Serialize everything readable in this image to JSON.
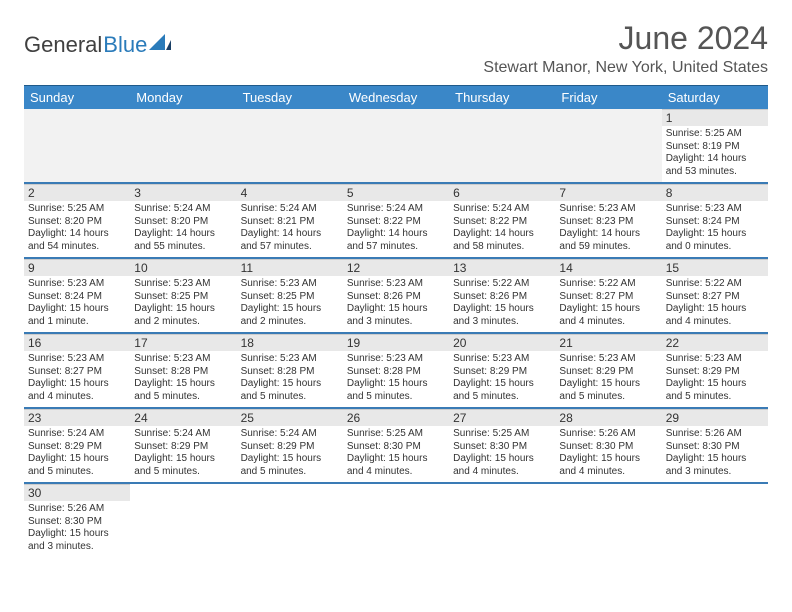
{
  "logo": {
    "text1": "General",
    "text2": "Blue"
  },
  "title": "June 2024",
  "location": "Stewart Manor, New York, United States",
  "header_bg": "#3a87c8",
  "row_divider": "#3a7bb5",
  "daynum_bg": "#e8e8e8",
  "weekdays": [
    "Sunday",
    "Monday",
    "Tuesday",
    "Wednesday",
    "Thursday",
    "Friday",
    "Saturday"
  ],
  "weeks": [
    [
      null,
      null,
      null,
      null,
      null,
      null,
      {
        "d": "1",
        "sr": "Sunrise: 5:25 AM",
        "ss": "Sunset: 8:19 PM",
        "dl": "Daylight: 14 hours and 53 minutes."
      }
    ],
    [
      {
        "d": "2",
        "sr": "Sunrise: 5:25 AM",
        "ss": "Sunset: 8:20 PM",
        "dl": "Daylight: 14 hours and 54 minutes."
      },
      {
        "d": "3",
        "sr": "Sunrise: 5:24 AM",
        "ss": "Sunset: 8:20 PM",
        "dl": "Daylight: 14 hours and 55 minutes."
      },
      {
        "d": "4",
        "sr": "Sunrise: 5:24 AM",
        "ss": "Sunset: 8:21 PM",
        "dl": "Daylight: 14 hours and 57 minutes."
      },
      {
        "d": "5",
        "sr": "Sunrise: 5:24 AM",
        "ss": "Sunset: 8:22 PM",
        "dl": "Daylight: 14 hours and 57 minutes."
      },
      {
        "d": "6",
        "sr": "Sunrise: 5:24 AM",
        "ss": "Sunset: 8:22 PM",
        "dl": "Daylight: 14 hours and 58 minutes."
      },
      {
        "d": "7",
        "sr": "Sunrise: 5:23 AM",
        "ss": "Sunset: 8:23 PM",
        "dl": "Daylight: 14 hours and 59 minutes."
      },
      {
        "d": "8",
        "sr": "Sunrise: 5:23 AM",
        "ss": "Sunset: 8:24 PM",
        "dl": "Daylight: 15 hours and 0 minutes."
      }
    ],
    [
      {
        "d": "9",
        "sr": "Sunrise: 5:23 AM",
        "ss": "Sunset: 8:24 PM",
        "dl": "Daylight: 15 hours and 1 minute."
      },
      {
        "d": "10",
        "sr": "Sunrise: 5:23 AM",
        "ss": "Sunset: 8:25 PM",
        "dl": "Daylight: 15 hours and 2 minutes."
      },
      {
        "d": "11",
        "sr": "Sunrise: 5:23 AM",
        "ss": "Sunset: 8:25 PM",
        "dl": "Daylight: 15 hours and 2 minutes."
      },
      {
        "d": "12",
        "sr": "Sunrise: 5:23 AM",
        "ss": "Sunset: 8:26 PM",
        "dl": "Daylight: 15 hours and 3 minutes."
      },
      {
        "d": "13",
        "sr": "Sunrise: 5:22 AM",
        "ss": "Sunset: 8:26 PM",
        "dl": "Daylight: 15 hours and 3 minutes."
      },
      {
        "d": "14",
        "sr": "Sunrise: 5:22 AM",
        "ss": "Sunset: 8:27 PM",
        "dl": "Daylight: 15 hours and 4 minutes."
      },
      {
        "d": "15",
        "sr": "Sunrise: 5:22 AM",
        "ss": "Sunset: 8:27 PM",
        "dl": "Daylight: 15 hours and 4 minutes."
      }
    ],
    [
      {
        "d": "16",
        "sr": "Sunrise: 5:23 AM",
        "ss": "Sunset: 8:27 PM",
        "dl": "Daylight: 15 hours and 4 minutes."
      },
      {
        "d": "17",
        "sr": "Sunrise: 5:23 AM",
        "ss": "Sunset: 8:28 PM",
        "dl": "Daylight: 15 hours and 5 minutes."
      },
      {
        "d": "18",
        "sr": "Sunrise: 5:23 AM",
        "ss": "Sunset: 8:28 PM",
        "dl": "Daylight: 15 hours and 5 minutes."
      },
      {
        "d": "19",
        "sr": "Sunrise: 5:23 AM",
        "ss": "Sunset: 8:28 PM",
        "dl": "Daylight: 15 hours and 5 minutes."
      },
      {
        "d": "20",
        "sr": "Sunrise: 5:23 AM",
        "ss": "Sunset: 8:29 PM",
        "dl": "Daylight: 15 hours and 5 minutes."
      },
      {
        "d": "21",
        "sr": "Sunrise: 5:23 AM",
        "ss": "Sunset: 8:29 PM",
        "dl": "Daylight: 15 hours and 5 minutes."
      },
      {
        "d": "22",
        "sr": "Sunrise: 5:23 AM",
        "ss": "Sunset: 8:29 PM",
        "dl": "Daylight: 15 hours and 5 minutes."
      }
    ],
    [
      {
        "d": "23",
        "sr": "Sunrise: 5:24 AM",
        "ss": "Sunset: 8:29 PM",
        "dl": "Daylight: 15 hours and 5 minutes."
      },
      {
        "d": "24",
        "sr": "Sunrise: 5:24 AM",
        "ss": "Sunset: 8:29 PM",
        "dl": "Daylight: 15 hours and 5 minutes."
      },
      {
        "d": "25",
        "sr": "Sunrise: 5:24 AM",
        "ss": "Sunset: 8:29 PM",
        "dl": "Daylight: 15 hours and 5 minutes."
      },
      {
        "d": "26",
        "sr": "Sunrise: 5:25 AM",
        "ss": "Sunset: 8:30 PM",
        "dl": "Daylight: 15 hours and 4 minutes."
      },
      {
        "d": "27",
        "sr": "Sunrise: 5:25 AM",
        "ss": "Sunset: 8:30 PM",
        "dl": "Daylight: 15 hours and 4 minutes."
      },
      {
        "d": "28",
        "sr": "Sunrise: 5:26 AM",
        "ss": "Sunset: 8:30 PM",
        "dl": "Daylight: 15 hours and 4 minutes."
      },
      {
        "d": "29",
        "sr": "Sunrise: 5:26 AM",
        "ss": "Sunset: 8:30 PM",
        "dl": "Daylight: 15 hours and 3 minutes."
      }
    ],
    [
      {
        "d": "30",
        "sr": "Sunrise: 5:26 AM",
        "ss": "Sunset: 8:30 PM",
        "dl": "Daylight: 15 hours and 3 minutes."
      },
      null,
      null,
      null,
      null,
      null,
      null
    ]
  ]
}
